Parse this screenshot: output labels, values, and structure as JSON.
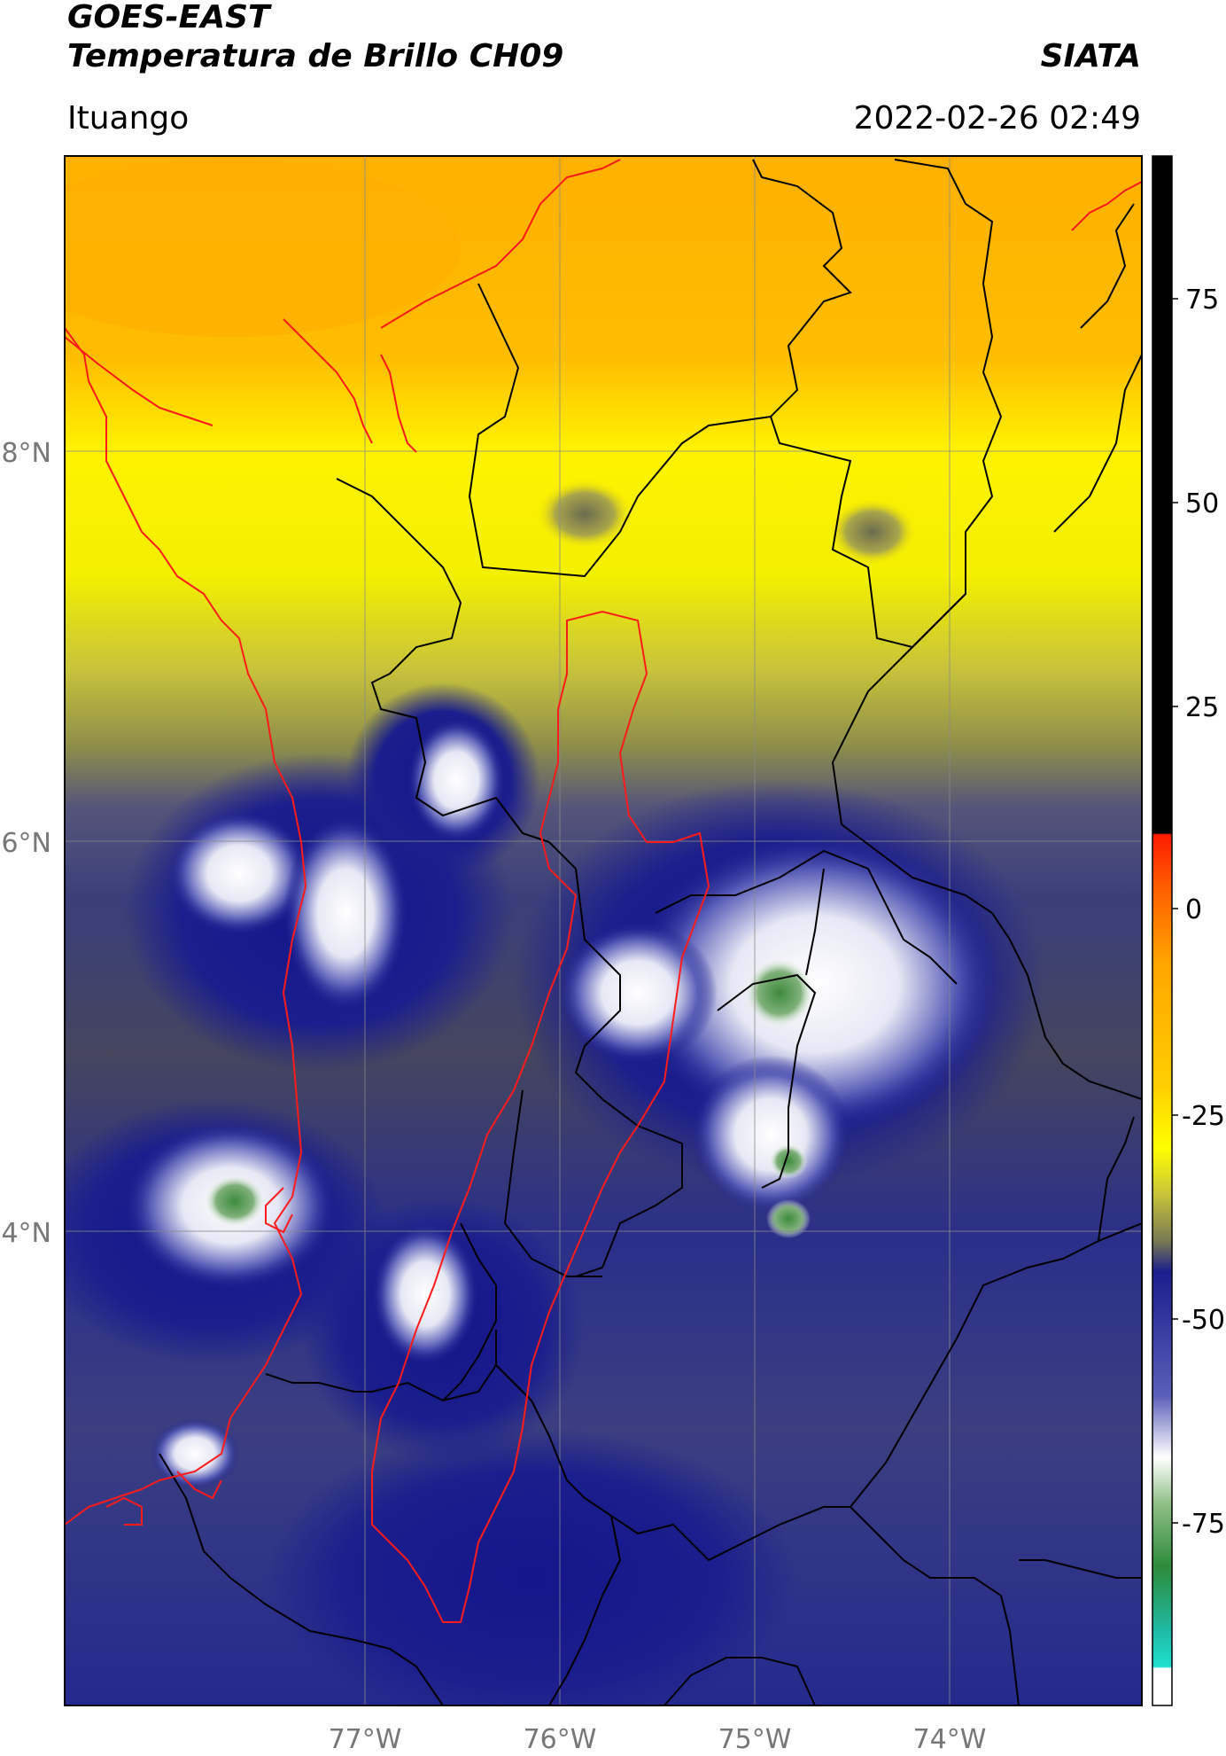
{
  "header": {
    "satellite": "GOES-EAST",
    "product": "Temperatura de Brillo CH09",
    "organization": "SIATA",
    "region": "Ituango",
    "datetime": "2022-02-26 02:49"
  },
  "map": {
    "lat_labels": [
      "8°N",
      "6°N",
      "4°N"
    ],
    "lon_labels": [
      "77°W",
      "76°W",
      "75°W",
      "74°W"
    ],
    "colorbar": {
      "ticks": [
        "75",
        "50",
        "25",
        "0",
        "-25",
        "-50",
        "-75"
      ],
      "colors": {
        "top": "#000000",
        "red": "#ff2a00",
        "orange": "#ffa500",
        "yellow": "#ffff00",
        "olive": "#8c8c46",
        "navy": "#1b1e8c",
        "white": "#ffffff",
        "green": "#2e8b3a",
        "cyan": "#1fe0d0"
      }
    }
  }
}
